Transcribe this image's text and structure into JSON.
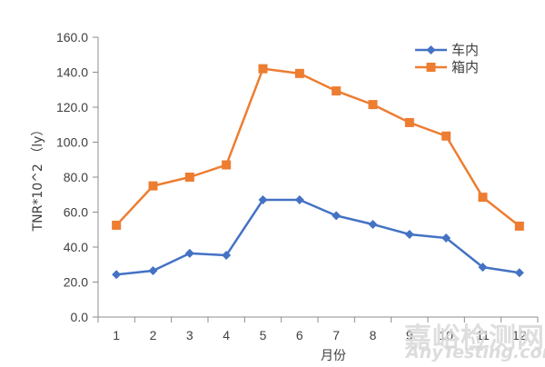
{
  "chart_data": {
    "type": "line",
    "title": "",
    "xlabel": "月份",
    "ylabel": "TNR*10^2 （ly）",
    "categories": [
      "1",
      "2",
      "3",
      "4",
      "5",
      "6",
      "7",
      "8",
      "9",
      "10",
      "11",
      "12"
    ],
    "ylim": [
      0,
      160
    ],
    "yticks": [
      "0.0",
      "20.0",
      "40.0",
      "60.0",
      "80.0",
      "100.0",
      "120.0",
      "140.0",
      "160.0"
    ],
    "grid": false,
    "legend_position": "top-right",
    "series": [
      {
        "name": "车内",
        "color": "#4472C4",
        "marker": "diamond",
        "values": [
          24.3,
          26.5,
          36.4,
          35.3,
          67.0,
          67.0,
          58.0,
          53.0,
          47.3,
          45.2,
          28.5,
          25.3
        ]
      },
      {
        "name": "箱内",
        "color": "#ED7D31",
        "marker": "square",
        "values": [
          52.5,
          75.0,
          80.0,
          87.0,
          142.0,
          139.3,
          129.3,
          121.5,
          111.2,
          103.5,
          68.5,
          52.0
        ]
      }
    ]
  },
  "watermark": {
    "cn": "嘉峪检测网",
    "en": "AnyTesting.com"
  }
}
